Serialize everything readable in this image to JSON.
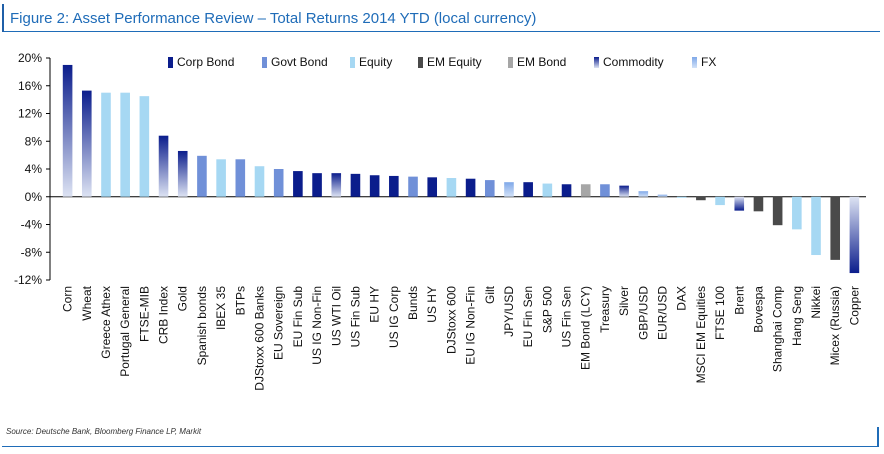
{
  "title": "Figure 2: Asset Performance Review – Total Returns 2014 YTD (local currency)",
  "source": "Source: Deutsche Bank, Bloomberg Finance LP, Markit",
  "chart_data": {
    "type": "bar",
    "title": "Figure 2: Asset Performance Review – Total Returns 2014 YTD (local currency)",
    "xlabel": "",
    "ylabel": "",
    "ylim": [
      -12,
      20
    ],
    "yticks": [
      20,
      16,
      12,
      8,
      4,
      0,
      -4,
      -8,
      -12
    ],
    "ytick_labels": [
      "20%",
      "16%",
      "12%",
      "8%",
      "4%",
      "0%",
      "-4%",
      "-8%",
      "-12%"
    ],
    "grid": false,
    "legend_position": "top",
    "legend": [
      {
        "name": "Corp Bond",
        "color": "#0b1d8c"
      },
      {
        "name": "Govt Bond",
        "color": "#7090d8"
      },
      {
        "name": "Equity",
        "color": "#a6d8f3"
      },
      {
        "name": "EM Equity",
        "color": "#4a4a4a"
      },
      {
        "name": "EM Bond",
        "color": "#a6a6a6"
      },
      {
        "name": "Commodity",
        "color": "#0b1d8c"
      },
      {
        "name": "FX",
        "color": "#7fa8e8"
      }
    ],
    "bars": [
      {
        "label": "Corn",
        "value": 19.0,
        "class": "Commodity"
      },
      {
        "label": "Wheat",
        "value": 15.3,
        "class": "Commodity"
      },
      {
        "label": "Greece Athex",
        "value": 15.0,
        "class": "Equity"
      },
      {
        "label": "Portugal General",
        "value": 15.0,
        "class": "Equity"
      },
      {
        "label": "FTSE-MIB",
        "value": 14.5,
        "class": "Equity"
      },
      {
        "label": "CRB Index",
        "value": 8.8,
        "class": "Commodity"
      },
      {
        "label": "Gold",
        "value": 6.6,
        "class": "Commodity"
      },
      {
        "label": "Spanish bonds",
        "value": 5.9,
        "class": "Govt Bond"
      },
      {
        "label": "IBEX 35",
        "value": 5.4,
        "class": "Equity"
      },
      {
        "label": "BTPs",
        "value": 5.4,
        "class": "Govt Bond"
      },
      {
        "label": "DJStoxx 600 Banks",
        "value": 4.4,
        "class": "Equity"
      },
      {
        "label": "EU Sovereign",
        "value": 4.0,
        "class": "Govt Bond"
      },
      {
        "label": "EU Fin Sub",
        "value": 3.7,
        "class": "Corp Bond"
      },
      {
        "label": "US IG Non-Fin",
        "value": 3.4,
        "class": "Corp Bond"
      },
      {
        "label": "US WTI Oil",
        "value": 3.4,
        "class": "Commodity"
      },
      {
        "label": "US Fin Sub",
        "value": 3.3,
        "class": "Corp Bond"
      },
      {
        "label": "EU HY",
        "value": 3.1,
        "class": "Corp Bond"
      },
      {
        "label": "US IG Corp",
        "value": 3.0,
        "class": "Corp Bond"
      },
      {
        "label": "Bunds",
        "value": 2.9,
        "class": "Govt Bond"
      },
      {
        "label": "US HY",
        "value": 2.8,
        "class": "Corp Bond"
      },
      {
        "label": "DJStoxx 600",
        "value": 2.7,
        "class": "Equity"
      },
      {
        "label": "EU IG Non-Fin",
        "value": 2.6,
        "class": "Corp Bond"
      },
      {
        "label": "Gilt",
        "value": 2.4,
        "class": "Govt Bond"
      },
      {
        "label": "JPY/USD",
        "value": 2.1,
        "class": "FX"
      },
      {
        "label": "EU Fin Sen",
        "value": 2.1,
        "class": "Corp Bond"
      },
      {
        "label": "S&P 500",
        "value": 1.9,
        "class": "Equity"
      },
      {
        "label": "US Fin Sen",
        "value": 1.8,
        "class": "Corp Bond"
      },
      {
        "label": "EM Bond (LCY)",
        "value": 1.8,
        "class": "EM Bond"
      },
      {
        "label": "Treasury",
        "value": 1.8,
        "class": "Govt Bond"
      },
      {
        "label": "Silver",
        "value": 1.6,
        "class": "Commodity"
      },
      {
        "label": "GBP/USD",
        "value": 0.8,
        "class": "FX"
      },
      {
        "label": "EUR/USD",
        "value": 0.3,
        "class": "FX"
      },
      {
        "label": "DAX",
        "value": -0.1,
        "class": "Equity"
      },
      {
        "label": "MSCI EM Equities",
        "value": -0.5,
        "class": "EM Equity"
      },
      {
        "label": "FTSE 100",
        "value": -1.2,
        "class": "Equity"
      },
      {
        "label": "Brent",
        "value": -2.0,
        "class": "Commodity"
      },
      {
        "label": "Bovespa",
        "value": -2.1,
        "class": "EM Equity"
      },
      {
        "label": "Shanghai Comp",
        "value": -4.1,
        "class": "EM Equity"
      },
      {
        "label": "Hang Seng",
        "value": -4.7,
        "class": "Equity"
      },
      {
        "label": "Nikkei",
        "value": -8.4,
        "class": "Equity"
      },
      {
        "label": "Micex (Russia)",
        "value": -9.1,
        "class": "EM Equity"
      },
      {
        "label": "Copper",
        "value": -11.0,
        "class": "Commodity"
      }
    ]
  }
}
